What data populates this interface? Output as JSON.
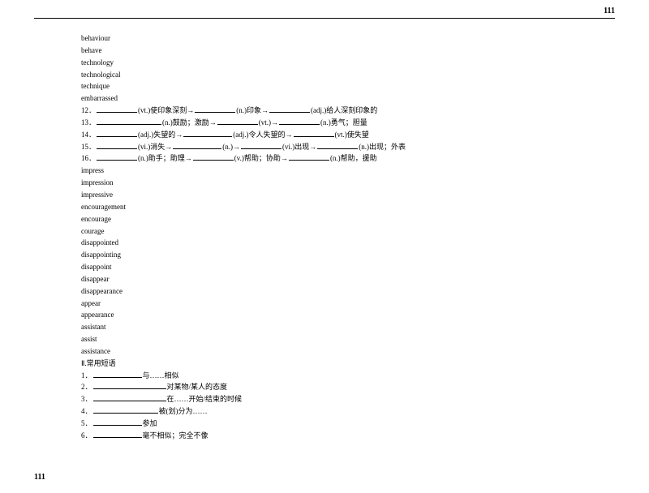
{
  "pageNumber": "111",
  "wordList1": [
    "behaviour",
    "behave",
    "technology",
    "technological",
    "technique",
    "embarrassed"
  ],
  "fill": {
    "l12": {
      "num": "12．",
      "p1": "(vt.)使印象深刻→",
      "p2": "(n.)印象→",
      "p3": "(adj.)给人深刻印象的"
    },
    "l13": {
      "num": "13．",
      "p1": "(n.)鼓励；激励→",
      "p2": "(vt.)→",
      "p3": "(n.)勇气；胆量"
    },
    "l14": {
      "num": "14．",
      "p1": "(adj.)失望的→",
      "p2": "(adj.)令人失望的→",
      "p3": "(vt.)使失望"
    },
    "l15": {
      "num": "15．",
      "p1": "(vi.)消失→",
      "p2": "(n.)→",
      "p3": "(vi.)出现→",
      "p4": "(n.)出现；外表"
    },
    "l16": {
      "num": "16．",
      "p1": "(n.)助手；助理→",
      "p2": "(v.)帮助；协助→",
      "p3": "(n.)帮助，援助"
    }
  },
  "wordList2": [
    "impress",
    "impression",
    "impressive",
    "encouragement",
    "encourage",
    "courage",
    "disappointed",
    "disappointing",
    "disappoint",
    "disappear",
    "disappearance",
    "appear",
    "appearance",
    "assistant",
    "assist",
    "assistance"
  ],
  "section2Heading": "Ⅱ.常用短语",
  "phrases": {
    "p1": {
      "num": "1．",
      "tail": "与……相似"
    },
    "p2": {
      "num": "2．",
      "tail": "对某物/某人的态度"
    },
    "p3": {
      "num": "3．",
      "tail": "在……开始/结束的时候"
    },
    "p4": {
      "num": "4．",
      "tail": "被(划)分为……"
    },
    "p5": {
      "num": "5．",
      "tail": "参加"
    },
    "p6": {
      "num": "6．",
      "tail": "毫不相似；完全不像"
    }
  }
}
